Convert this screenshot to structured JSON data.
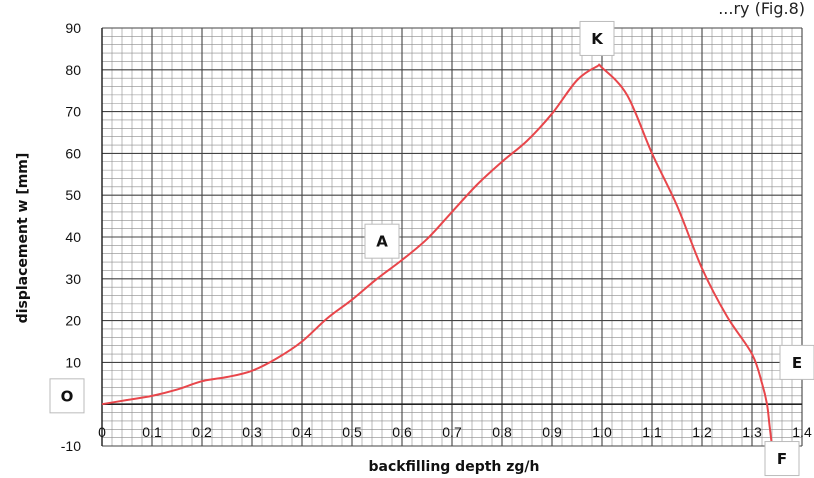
{
  "header_fragment": "...ry (Fig.8)",
  "chart_data": {
    "type": "line",
    "title": "",
    "xlabel": "backfilling depth  zg/h",
    "ylabel": "displacement  w  [mm]",
    "xlim": [
      0,
      1.4
    ],
    "ylim": [
      -10,
      90
    ],
    "x_ticks": [
      "0",
      "0.1",
      "0.2",
      "0.3",
      "0.4",
      "0.5",
      "0.6",
      "0.7",
      "0.8",
      "0.9",
      "1.0",
      "1.1",
      "1.2",
      "1.3",
      "1.4"
    ],
    "y_ticks": [
      "-10",
      "10",
      "20",
      "30",
      "40",
      "50",
      "60",
      "70",
      "80",
      "90"
    ],
    "grid": true,
    "line_color": "#e8464b",
    "series": [
      {
        "x": [
          0,
          0.05,
          0.1,
          0.15,
          0.2,
          0.25,
          0.3,
          0.35,
          0.4,
          0.45,
          0.5,
          0.55,
          0.6,
          0.65,
          0.7,
          0.75,
          0.8,
          0.85,
          0.9,
          0.95,
          0.99,
          1.0,
          1.05,
          1.1,
          1.15,
          1.2,
          1.25,
          1.3,
          1.32,
          1.33,
          1.335,
          1.34
        ],
        "y": [
          0,
          1,
          2,
          3.5,
          5.5,
          6.5,
          8,
          11,
          15,
          20.5,
          25,
          30,
          34.5,
          39.5,
          46,
          52.5,
          58,
          63,
          69.5,
          77.5,
          80.8,
          80.5,
          74,
          60,
          47.5,
          32.5,
          21,
          12,
          5,
          0,
          -5,
          -10
        ]
      }
    ],
    "annotations": [
      {
        "label": "O",
        "x": -0.07,
        "y": 2
      },
      {
        "label": "A",
        "x": 0.56,
        "y": 39
      },
      {
        "label": "K",
        "x": 0.99,
        "y": 87.5
      },
      {
        "label": "E",
        "x": 1.39,
        "y": 10
      },
      {
        "label": "F",
        "x": 1.36,
        "y": -13
      }
    ]
  }
}
